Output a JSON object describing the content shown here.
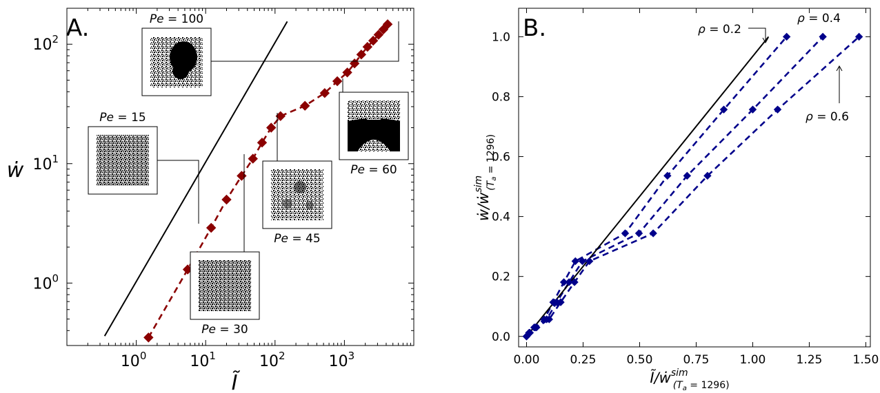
{
  "chart_data": [
    {
      "panel_label": "A.",
      "type": "line",
      "xscale": "log",
      "yscale": "log",
      "xlabel": "Ĩ",
      "ylabel": "ẇ",
      "xlim": [
        0.1,
        10000
      ],
      "ylim": [
        0.3,
        200
      ],
      "xticks": [
        {
          "value": 1,
          "base": "10",
          "exp": "0"
        },
        {
          "value": 10,
          "base": "10",
          "exp": "1"
        },
        {
          "value": 100,
          "base": "10",
          "exp": "2"
        },
        {
          "value": 1000,
          "base": "10",
          "exp": "3"
        }
      ],
      "yticks": [
        {
          "value": 1,
          "base": "10",
          "exp": "0"
        },
        {
          "value": 10,
          "base": "10",
          "exp": "1"
        },
        {
          "value": 100,
          "base": "10",
          "exp": "2"
        }
      ],
      "grid": false,
      "series": [
        {
          "color": "#8b0000",
          "style": "dashed",
          "marker": "diamond",
          "x": [
            1.5,
            5.5,
            12,
            20,
            33,
            48,
            65,
            88,
            120,
            270,
            520,
            790,
            1100,
            1400,
            1750,
            2150,
            2600,
            3100,
            3650,
            4200
          ],
          "y": [
            0.35,
            1.3,
            2.9,
            5.0,
            7.9,
            11,
            15,
            20,
            25,
            30.5,
            39,
            49,
            58,
            69,
            82,
            95,
            107,
            120,
            133,
            147
          ]
        },
        {
          "color": "#000000",
          "style": "solid",
          "marker": "none",
          "x": [
            0.35,
            150
          ],
          "y": [
            0.36,
            155
          ]
        }
      ],
      "annotations": [
        {
          "label": "Pe = 15",
          "prefix": "Pe",
          "value": "15",
          "x": 12,
          "y": 2.9,
          "morphology": "homogeneous"
        },
        {
          "label": "Pe = 30",
          "prefix": "Pe",
          "value": "30",
          "x": 48,
          "y": 11,
          "morphology": "homogeneous"
        },
        {
          "label": "Pe = 45",
          "prefix": "Pe",
          "value": "45",
          "x": 120,
          "y": 25,
          "morphology": "weak clusters"
        },
        {
          "label": "Pe = 60",
          "prefix": "Pe",
          "value": "60",
          "x": 790,
          "y": 49,
          "morphology": "band"
        },
        {
          "label": "Pe = 100",
          "prefix": "Pe",
          "value": "100",
          "x": 4200,
          "y": 147,
          "morphology": "large cluster"
        }
      ]
    },
    {
      "panel_label": "B.",
      "type": "line",
      "xlabel_main": "Ĩ/ẇ",
      "ylabel_main": "ẇ/ẇ",
      "label_sup": "sim",
      "label_sub": "(T",
      "label_sub_a": "a",
      "label_sub_end": " = 1296)",
      "xlim": [
        -0.035,
        1.52
      ],
      "ylim": [
        -0.035,
        1.095
      ],
      "xticks": [
        "0.00",
        "0.25",
        "0.50",
        "0.75",
        "1.00",
        "1.25",
        "1.50"
      ],
      "yticks": [
        "0.0",
        "0.2",
        "0.4",
        "0.6",
        "0.8",
        "1.0"
      ],
      "grid": false,
      "series": [
        {
          "color": "#00008b",
          "style": "dashed",
          "marker": "diamond",
          "x": [
            0,
            0.011,
            0.034,
            0.078,
            0.118,
            0.165,
            0.216,
            0.436,
            0.623,
            0.872,
            1.15
          ],
          "y": [
            0,
            0.012,
            0.03,
            0.057,
            0.114,
            0.181,
            0.251,
            0.344,
            0.536,
            0.757,
            1.0
          ]
        },
        {
          "color": "#00008b",
          "style": "dashed",
          "marker": "diamond",
          "x": [
            0,
            0.013,
            0.039,
            0.089,
            0.134,
            0.188,
            0.247,
            0.497,
            0.71,
            1.0,
            1.31
          ],
          "y": [
            0,
            0.012,
            0.03,
            0.057,
            0.114,
            0.181,
            0.251,
            0.344,
            0.536,
            0.757,
            1.0
          ]
        },
        {
          "color": "#00008b",
          "style": "dashed",
          "marker": "diamond",
          "x": [
            0,
            0.015,
            0.044,
            0.1,
            0.151,
            0.212,
            0.278,
            0.56,
            0.8,
            1.11,
            1.47
          ],
          "y": [
            0,
            0.012,
            0.03,
            0.057,
            0.114,
            0.181,
            0.251,
            0.344,
            0.536,
            0.757,
            1.0
          ]
        },
        {
          "color": "#000000",
          "style": "solid",
          "marker": "none",
          "x": [
            0,
            1.07
          ],
          "y": [
            0,
            1.0
          ]
        }
      ],
      "annotations": [
        {
          "symbol": "ρ",
          "rest": " = 0.2",
          "series": 0
        },
        {
          "symbol": "ρ",
          "rest": " = 0.4",
          "series": 1
        },
        {
          "symbol": "ρ",
          "rest": " = 0.6",
          "series": 2
        }
      ]
    }
  ]
}
